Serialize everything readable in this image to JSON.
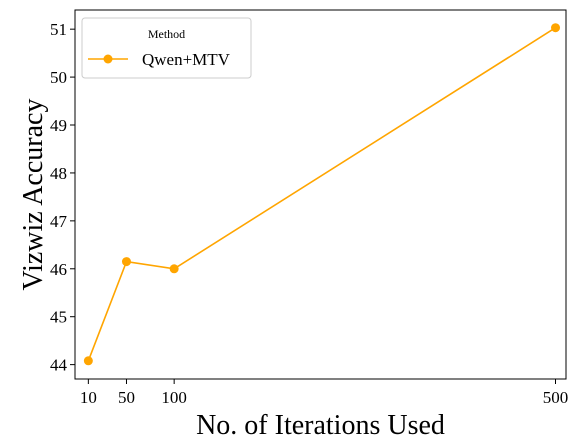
{
  "chart_data": {
    "type": "line",
    "title": "",
    "xlabel": "No. of Iterations Used",
    "ylabel": "Vizwiz Accuracy",
    "xlim": [
      -4,
      511
    ],
    "ylim": [
      43.7,
      51.4
    ],
    "xticks": [
      10,
      50,
      100,
      500
    ],
    "yticks": [
      44,
      45,
      46,
      47,
      48,
      49,
      50,
      51
    ],
    "grid": false,
    "legend": {
      "title": "Method",
      "placement": "top-left"
    },
    "series": [
      {
        "name": "Qwen+MTV",
        "color": "#FFA500",
        "marker": "circle",
        "x": [
          10,
          50,
          100,
          500
        ],
        "y": [
          44.08,
          46.15,
          46.0,
          51.03
        ]
      }
    ]
  }
}
